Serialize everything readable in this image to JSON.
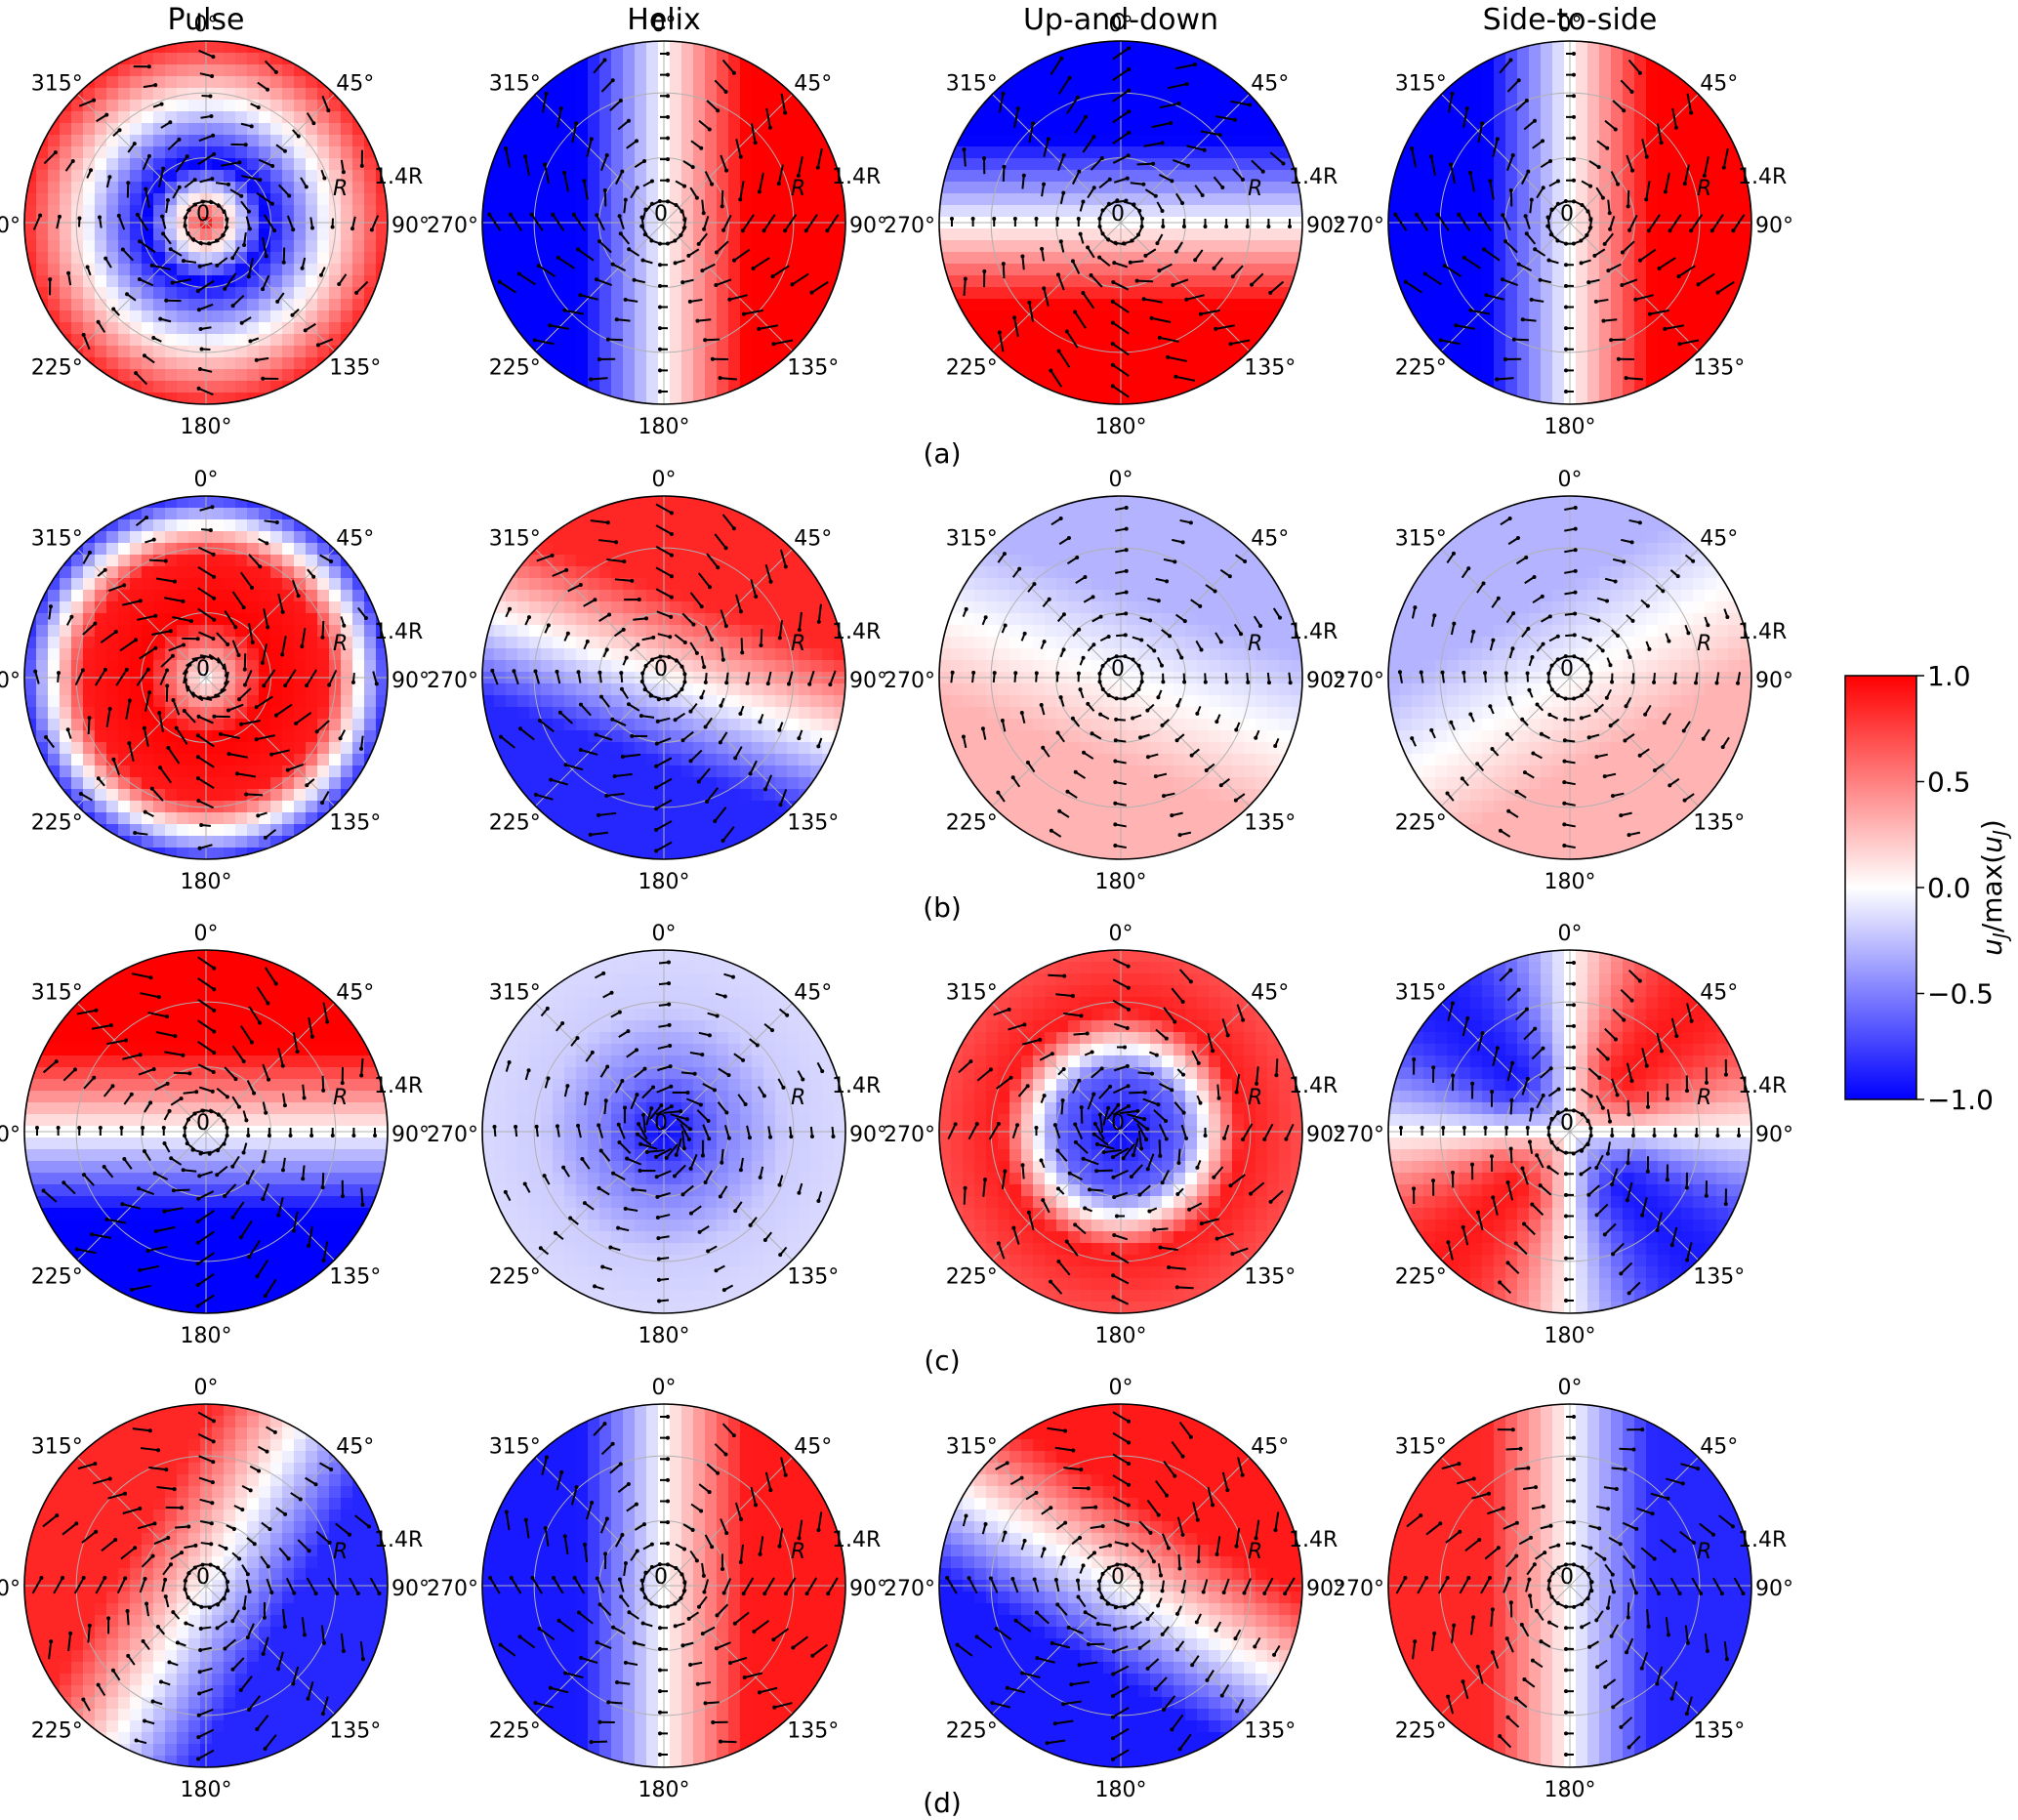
{
  "figure": {
    "column_titles": [
      "Pulse",
      "Helix",
      "Up-and-down",
      "Side-to-side"
    ],
    "row_labels": [
      "(a)",
      "(b)",
      "(c)",
      "(d)"
    ],
    "angle_labels": [
      "0°",
      "45°",
      "90°",
      "135°",
      "180°",
      "225°",
      "270°",
      "315°"
    ],
    "radial_labels": {
      "center": "0",
      "inner": "R",
      "outer": "1.4R"
    }
  },
  "colors": {
    "negative": "#0000ff",
    "zero": "#ffffff",
    "positive": "#ff0000",
    "vectors": "#000000"
  },
  "chart_data": {
    "type": "heatmap",
    "projection": "polar",
    "theta_labels_deg": [
      0,
      45,
      90,
      135,
      180,
      225,
      270,
      315
    ],
    "r_range": [
      "0",
      "1.4R"
    ],
    "colorbar": {
      "label": "u_J/max(u_J)",
      "label_main": "u",
      "label_sub": "J",
      "label_mid": "/max(",
      "label_end": ")",
      "ticks": [
        "1.0",
        "0.5",
        "0.0",
        "−0.5",
        "−1.0"
      ],
      "range": [
        -1.0,
        1.0
      ],
      "colormap": "bwr"
    },
    "panels": [
      {
        "row": "(a)",
        "column": "Pulse",
        "pattern": "rings",
        "values": [
          0.9,
          -1.0,
          0.0,
          0.85
        ]
      },
      {
        "row": "(a)",
        "column": "Helix",
        "pattern": "dipole",
        "orientation_deg": 90,
        "amplitude": 1.0
      },
      {
        "row": "(a)",
        "column": "Up-and-down",
        "pattern": "dipole",
        "orientation_deg": 180,
        "amplitude": 1.0
      },
      {
        "row": "(a)",
        "column": "Side-to-side",
        "pattern": "dipole",
        "orientation_deg": 90,
        "amplitude": 1.0
      },
      {
        "row": "(b)",
        "column": "Pulse",
        "pattern": "rings",
        "values": [
          0.0,
          1.0,
          0.9,
          -0.8
        ]
      },
      {
        "row": "(b)",
        "column": "Helix",
        "pattern": "dipole",
        "orientation_deg": 20,
        "amplitude": 0.85
      },
      {
        "row": "(b)",
        "column": "Up-and-down",
        "pattern": "dipole",
        "orientation_deg": 200,
        "amplitude": 0.3
      },
      {
        "row": "(b)",
        "column": "Side-to-side",
        "pattern": "dipole",
        "orientation_deg": 150,
        "amplitude": 0.3
      },
      {
        "row": "(c)",
        "column": "Pulse",
        "pattern": "dipole",
        "orientation_deg": 0,
        "amplitude": 1.0
      },
      {
        "row": "(c)",
        "column": "Helix",
        "pattern": "rings",
        "values": [
          -1.0,
          -0.5,
          -0.2,
          -0.15
        ]
      },
      {
        "row": "(c)",
        "column": "Up-and-down",
        "pattern": "rings",
        "values": [
          -1.0,
          -0.6,
          0.9,
          0.7
        ]
      },
      {
        "row": "(c)",
        "column": "Side-to-side",
        "pattern": "quadrupole",
        "orientation_deg": 0,
        "amplitude": 0.9
      },
      {
        "row": "(d)",
        "column": "Pulse",
        "pattern": "dipole",
        "orientation_deg": 300,
        "amplitude": 0.85
      },
      {
        "row": "(d)",
        "column": "Helix",
        "pattern": "dipole",
        "orientation_deg": 90,
        "amplitude": 0.9
      },
      {
        "row": "(d)",
        "column": "Up-and-down",
        "pattern": "dipole",
        "orientation_deg": 30,
        "amplitude": 0.9
      },
      {
        "row": "(d)",
        "column": "Side-to-side",
        "pattern": "dipole",
        "orientation_deg": 270,
        "amplitude": 0.85
      }
    ]
  }
}
